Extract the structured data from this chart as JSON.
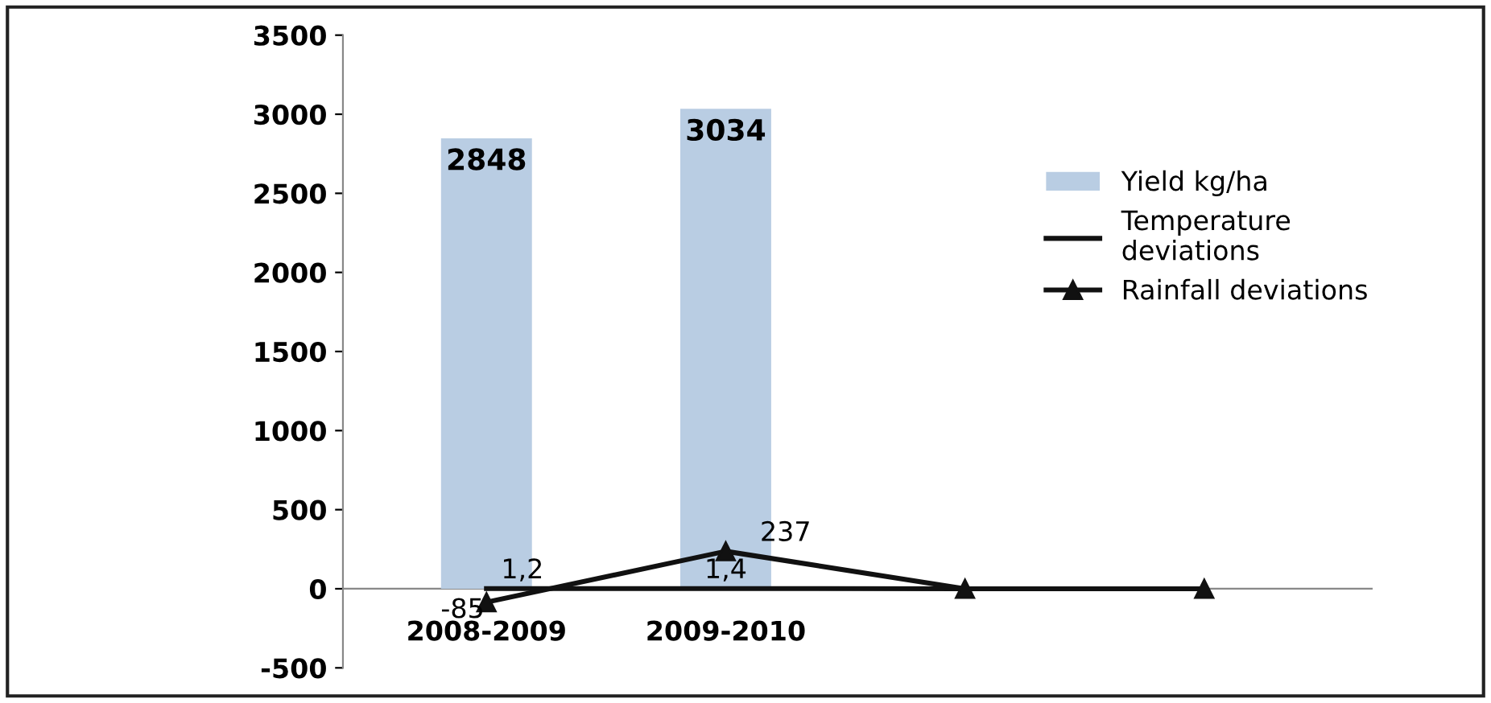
{
  "chart_data": {
    "type": "bar",
    "categories": [
      "2008-2009",
      "2009-2010",
      null,
      null
    ],
    "series": [
      {
        "name": "Yield kg/ha",
        "color": "#b9cde3",
        "values": [
          2848,
          3034,
          null,
          null
        ],
        "value_labels": [
          "2848",
          "3034",
          null,
          null
        ]
      },
      {
        "name": "Temperature deviations",
        "type": "line",
        "color": "#111111",
        "values": [
          1.2,
          1.4,
          0,
          0
        ],
        "value_labels": [
          "1,2",
          "1,4",
          null,
          null
        ]
      },
      {
        "name": "Rainfall deviations",
        "type": "line",
        "color": "#111111",
        "values": [
          -85,
          237,
          0,
          0
        ],
        "marker": "triangle",
        "value_labels": [
          "-85",
          "237",
          null,
          null
        ]
      }
    ],
    "ylim": [
      -500,
      3500
    ],
    "yticks": [
      -500,
      0,
      500,
      1000,
      1500,
      2000,
      2500,
      3000,
      3500
    ],
    "grid": false,
    "legend": "right"
  }
}
